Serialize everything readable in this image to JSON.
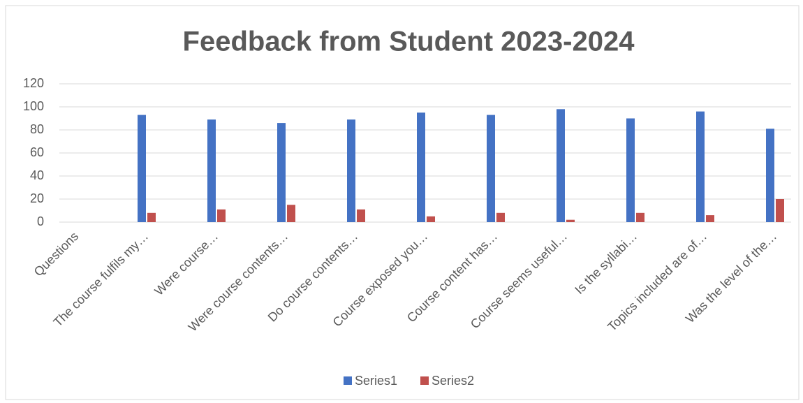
{
  "chart_data": {
    "type": "bar",
    "title": "Feedback from Student  2023-2024",
    "categories": [
      "Questions",
      "The course fulfils my…",
      "Were course…",
      "Were course contents…",
      "Do course contents…",
      "Course exposed you…",
      "Course content has…",
      "Course seems useful…",
      "Is the  syllabi…",
      "Topics included are of…",
      "Was the level of the…"
    ],
    "series": [
      {
        "name": "Series1",
        "color": "#4472c4",
        "values": [
          null,
          93,
          89,
          86,
          89,
          95,
          93,
          98,
          90,
          96,
          81
        ]
      },
      {
        "name": "Series2",
        "color": "#c0504d",
        "values": [
          null,
          8,
          11,
          15,
          11,
          5,
          8,
          2,
          8,
          6,
          20
        ]
      }
    ],
    "ylim": [
      0,
      120
    ],
    "yticks": [
      0,
      20,
      40,
      60,
      80,
      100,
      120
    ],
    "grid": true,
    "legend": "bottom"
  }
}
